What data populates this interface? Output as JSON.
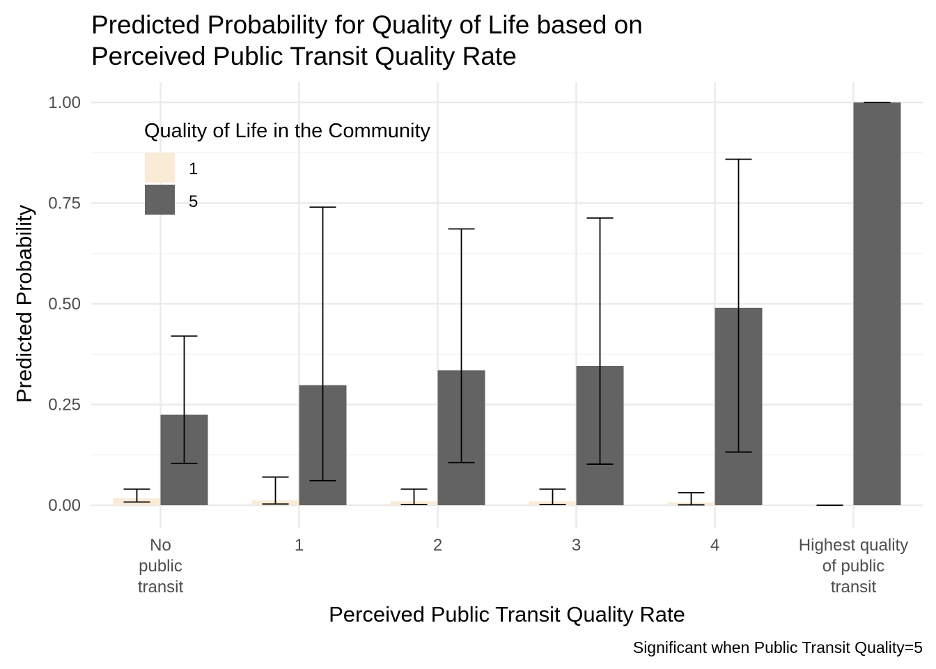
{
  "chart_data": {
    "type": "bar",
    "title_lines": [
      "Predicted Probability for Quality of Life based on",
      "Perceived Public Transit Quality Rate"
    ],
    "xlabel": "Perceived Public Transit Quality Rate",
    "ylabel": "Predicted Probability",
    "caption": "Significant when Public Transit Quality=5",
    "categories": [
      [
        "No",
        "public",
        "transit"
      ],
      [
        "1"
      ],
      [
        "2"
      ],
      [
        "3"
      ],
      [
        "4"
      ],
      [
        "Highest quality",
        "of public",
        "transit"
      ]
    ],
    "ylim": [
      -0.04,
      1.05
    ],
    "yticks": [
      0,
      0.25,
      0.5,
      0.75,
      1.0
    ],
    "ytick_labels": [
      "0.00",
      "0.25",
      "0.50",
      "0.75",
      "1.00"
    ],
    "grid": true,
    "legend": {
      "title": "Quality of Life in the Community",
      "placement": "top-left",
      "entries": [
        "1",
        "5"
      ]
    },
    "series": [
      {
        "name": "1",
        "color": "#faebd7",
        "values": [
          0.017,
          0.012,
          0.01,
          0.01,
          0.007,
          0.0
        ],
        "lower": [
          0.008,
          0.003,
          0.002,
          0.002,
          0.001,
          0.0
        ],
        "upper": [
          0.04,
          0.07,
          0.04,
          0.04,
          0.031,
          0.0
        ]
      },
      {
        "name": "5",
        "color": "#636363",
        "values": [
          0.225,
          0.298,
          0.335,
          0.346,
          0.49,
          1.0
        ],
        "lower": [
          0.104,
          0.061,
          0.106,
          0.102,
          0.132,
          1.0
        ],
        "upper": [
          0.42,
          0.74,
          0.686,
          0.713,
          0.859,
          1.0
        ]
      }
    ]
  }
}
